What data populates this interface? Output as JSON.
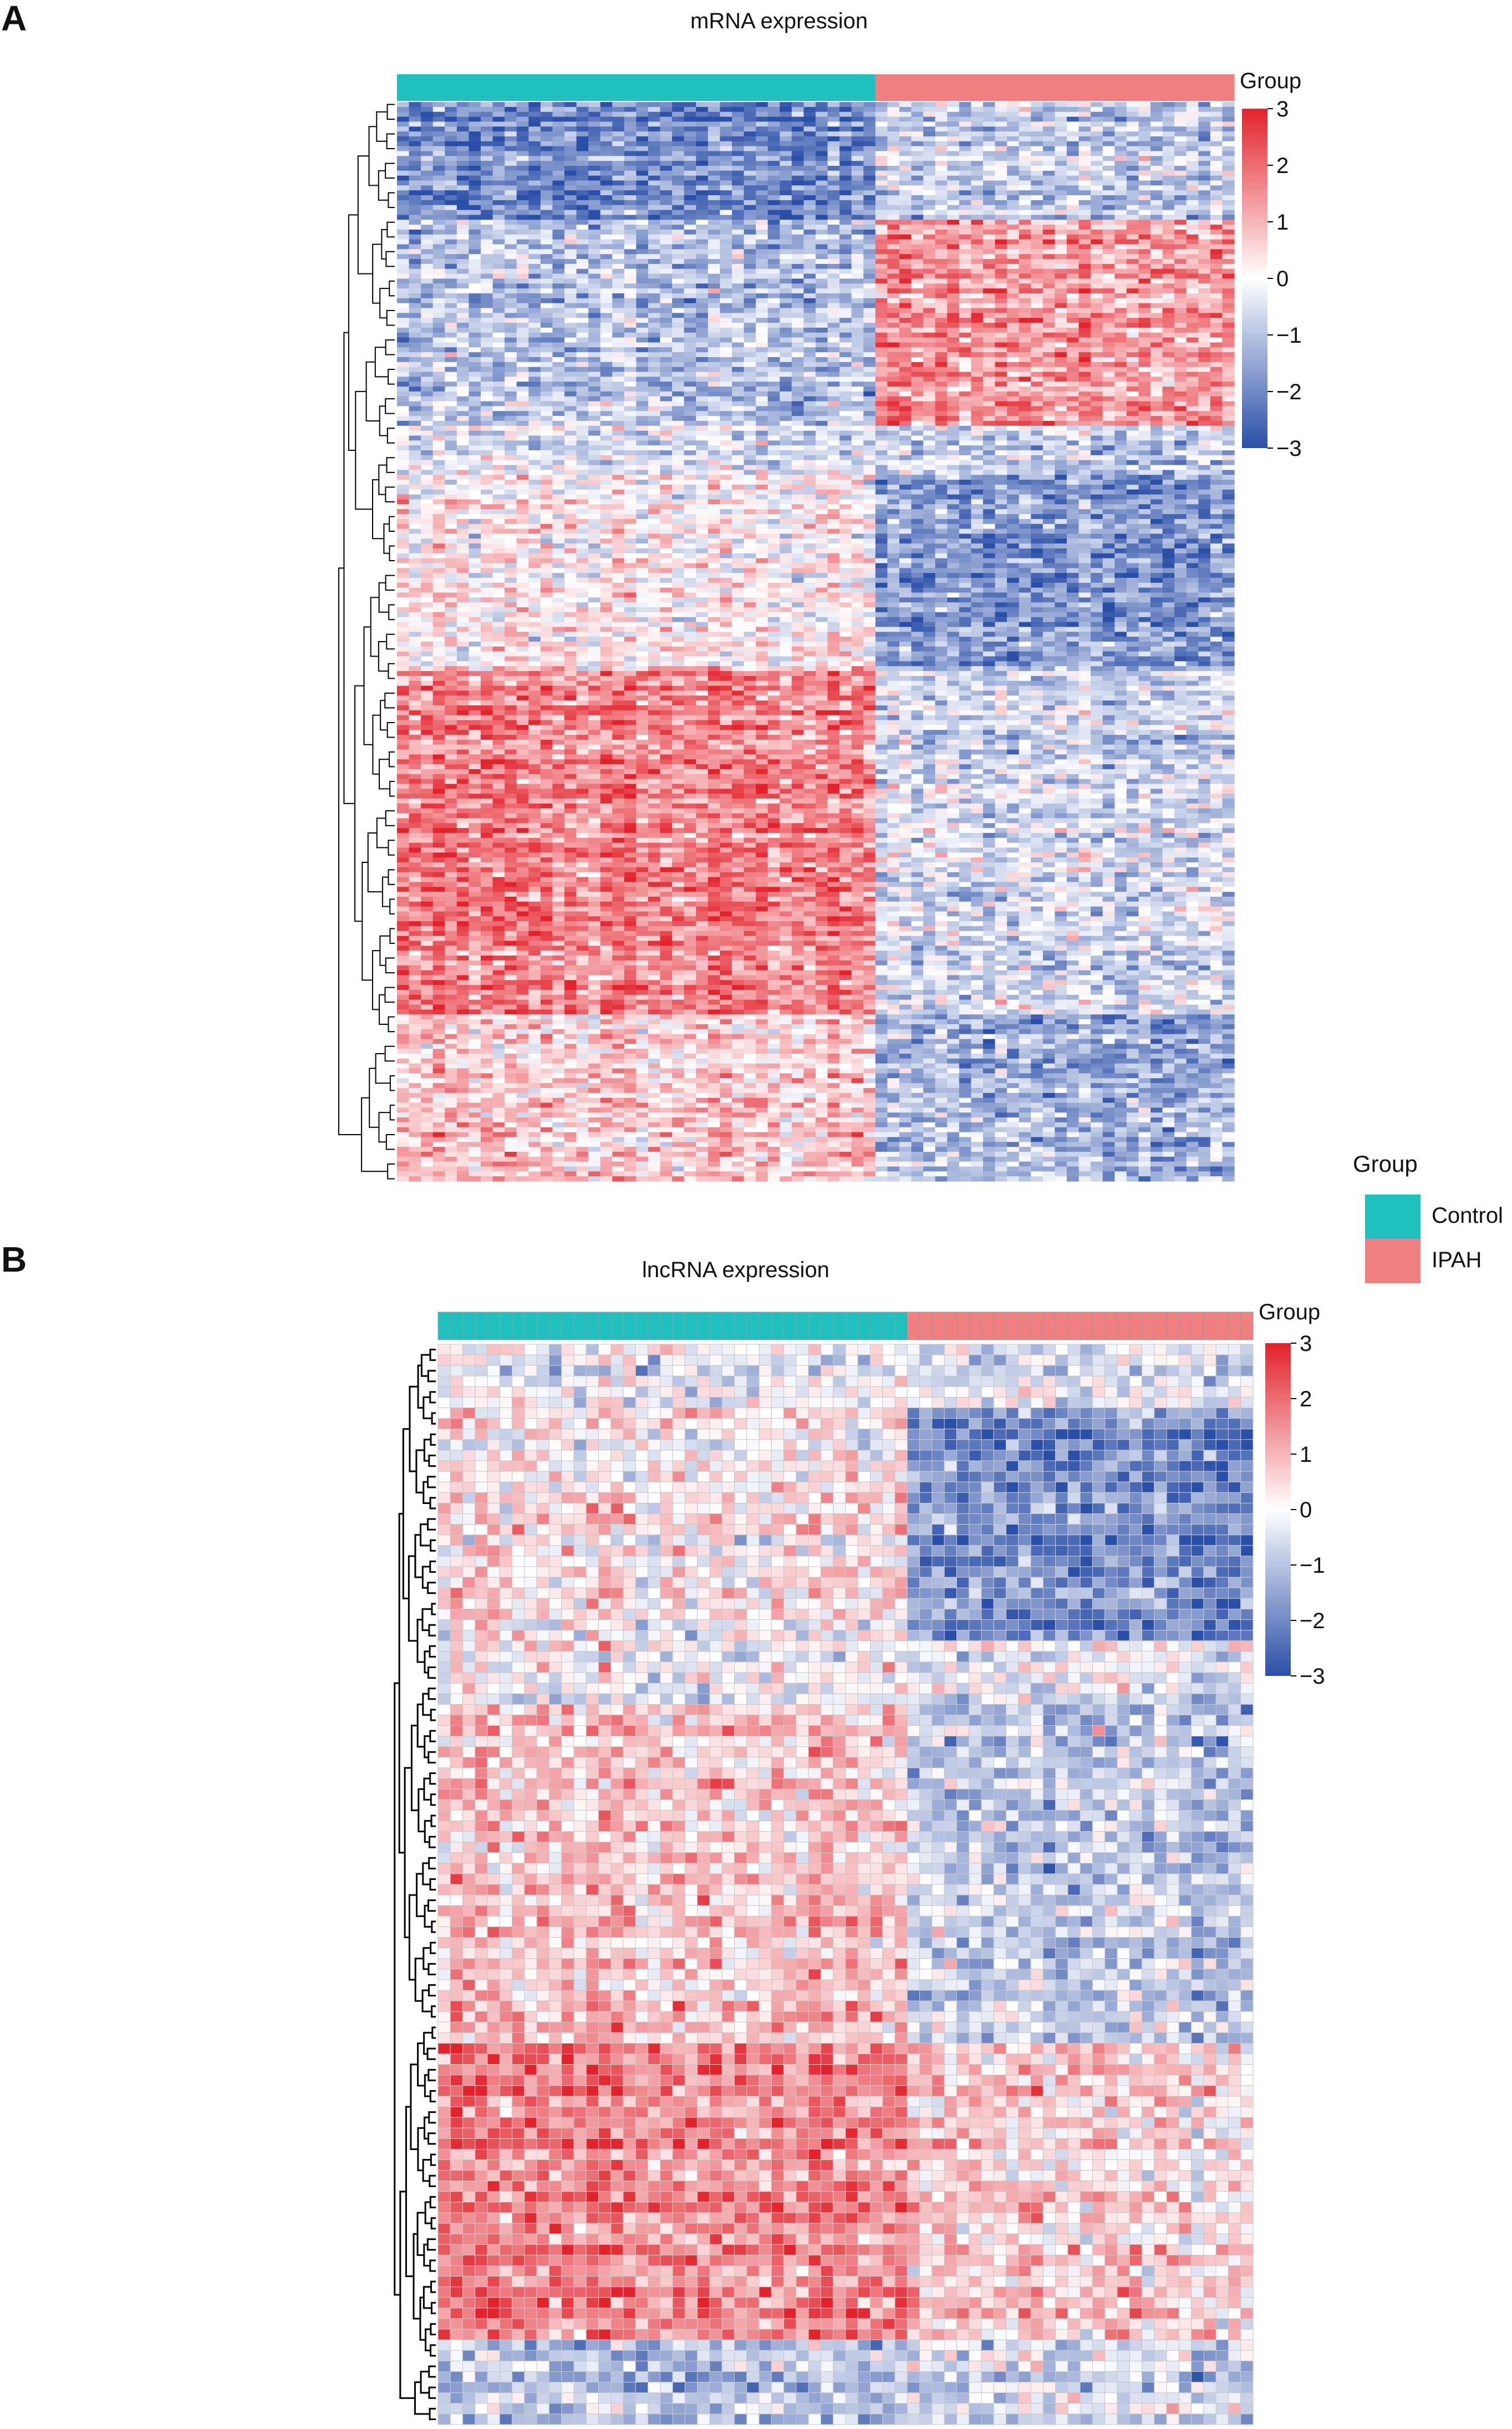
{
  "panels": {
    "a": {
      "letter": "A",
      "title": "mRNA expression",
      "annotation_title": "Group",
      "color_scale": {
        "ticks": [
          "3",
          "2",
          "1",
          "0",
          "−1",
          "−2",
          "−3"
        ],
        "min": -3,
        "max": 3
      }
    },
    "b": {
      "letter": "B",
      "title": "lncRNA expression",
      "annotation_title": "Group",
      "color_scale": {
        "ticks": [
          "3",
          "2",
          "1",
          "0",
          "−1",
          "−2",
          "−3"
        ],
        "min": -3,
        "max": 3
      }
    }
  },
  "legend": {
    "title": "Group",
    "items": [
      {
        "label": "Control",
        "color": "#1FC0C0"
      },
      {
        "label": "IPAH",
        "color": "#F08080"
      }
    ]
  },
  "colors": {
    "low": "#2A4FA8",
    "mid": "#FFFFFF",
    "high": "#E3222B",
    "control": "#1FC0C0",
    "ipah": "#F08080"
  },
  "chart_data": [
    {
      "type": "heatmap",
      "title": "mRNA expression",
      "value_range": [
        -3,
        3
      ],
      "groups": [
        {
          "name": "Control",
          "columns": 40
        },
        {
          "name": "IPAH",
          "columns": 30
        }
      ],
      "row_clusters": [
        {
          "rows": 24,
          "control": -2.0,
          "ipah": -0.8
        },
        {
          "rows": 42,
          "control": -1.0,
          "ipah": 1.4
        },
        {
          "rows": 10,
          "control": -0.3,
          "ipah": -0.6
        },
        {
          "rows": 40,
          "control": 0.2,
          "ipah": -1.6
        },
        {
          "rows": 70,
          "control": 1.7,
          "ipah": -0.5
        },
        {
          "rows": 34,
          "control": 0.6,
          "ipah": -1.2
        }
      ]
    },
    {
      "type": "heatmap",
      "title": "lncRNA expression",
      "value_range": [
        -3,
        3
      ],
      "groups": [
        {
          "name": "Control",
          "columns": 38
        },
        {
          "name": "IPAH",
          "columns": 28
        }
      ],
      "row_clusters": [
        {
          "rows": 6,
          "control": -0.2,
          "ipah": -0.5
        },
        {
          "rows": 22,
          "control": 0.3,
          "ipah": -2.0
        },
        {
          "rows": 6,
          "control": -0.2,
          "ipah": -0.4
        },
        {
          "rows": 32,
          "control": 0.8,
          "ipah": -0.8
        },
        {
          "rows": 28,
          "control": 1.7,
          "ipah": 0.6
        },
        {
          "rows": 8,
          "control": -1.0,
          "ipah": -0.6
        }
      ]
    }
  ]
}
